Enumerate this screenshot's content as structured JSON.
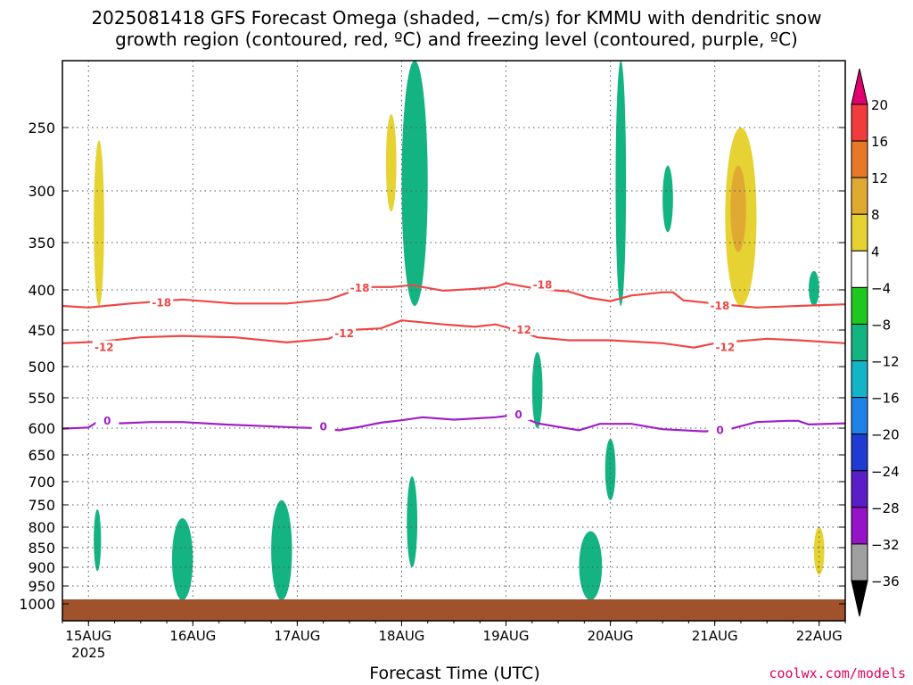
{
  "title": {
    "line1": "2025081418 GFS Forecast Omega (shaded, −cm/s) for KMMU with dendritic snow",
    "line2": "growth region (contoured, red, ºC) and freezing level (contoured, purple, ºC)"
  },
  "xlabel": "Forecast Time (UTC)",
  "credit": "coolwx.com/models",
  "chart_data": {
    "type": "heatmap",
    "x_axis": {
      "label": "Forecast Time (UTC)",
      "ticks": [
        {
          "label": "15AUG",
          "sub": "2025",
          "day": 15
        },
        {
          "label": "16AUG",
          "sub": "",
          "day": 16
        },
        {
          "label": "17AUG",
          "sub": "",
          "day": 17
        },
        {
          "label": "18AUG",
          "sub": "",
          "day": 18
        },
        {
          "label": "19AUG",
          "sub": "",
          "day": 19
        },
        {
          "label": "20AUG",
          "sub": "",
          "day": 20
        },
        {
          "label": "21AUG",
          "sub": "",
          "day": 21
        },
        {
          "label": "22AUG",
          "sub": "",
          "day": 22
        }
      ],
      "range_days": [
        14.75,
        22.25
      ]
    },
    "y_axis": {
      "label": "",
      "ticks": [
        250,
        300,
        350,
        400,
        450,
        500,
        550,
        600,
        650,
        700,
        750,
        800,
        850,
        900,
        950,
        1000
      ],
      "range": [
        200,
        1000
      ],
      "inverted": true
    },
    "colorbar": {
      "levels": [
        20,
        16,
        12,
        8,
        4,
        -4,
        -8,
        -12,
        -16,
        -20,
        -24,
        -28,
        -32,
        -36
      ],
      "colors": [
        "#f03c3c",
        "#e87828",
        "#e0aa32",
        "#e6d232",
        "#ffffff",
        "#1ec81e",
        "#14b482",
        "#14b4c8",
        "#1e82e6",
        "#1e3cd2",
        "#5a1ec8",
        "#9614c8",
        "#a0a0a0",
        "#000000"
      ],
      "top_color": "#e0006e",
      "bottom_color": "#000000"
    },
    "contours": [
      {
        "label": "-18",
        "color": "#f04646",
        "points": [
          [
            14.75,
            420
          ],
          [
            15.0,
            422
          ],
          [
            15.4,
            417
          ],
          [
            15.9,
            412
          ],
          [
            16.4,
            417
          ],
          [
            16.9,
            417
          ],
          [
            17.3,
            412
          ],
          [
            17.5,
            403
          ],
          [
            17.7,
            397
          ],
          [
            17.9,
            397
          ],
          [
            18.1,
            395
          ],
          [
            18.4,
            401
          ],
          [
            18.7,
            399
          ],
          [
            18.9,
            397
          ],
          [
            19.0,
            393
          ],
          [
            19.3,
            399
          ],
          [
            19.6,
            402
          ],
          [
            19.8,
            410
          ],
          [
            20.0,
            414
          ],
          [
            20.2,
            407
          ],
          [
            20.5,
            403
          ],
          [
            20.6,
            403
          ],
          [
            20.7,
            413
          ],
          [
            21.0,
            417
          ],
          [
            21.4,
            422
          ],
          [
            21.8,
            420
          ],
          [
            22.25,
            418
          ]
        ],
        "label_at": [
          [
            15.7,
            416
          ],
          [
            17.6,
            398
          ],
          [
            19.35,
            395
          ],
          [
            21.05,
            420
          ]
        ]
      },
      {
        "label": "-12",
        "color": "#f04646",
        "points": [
          [
            14.75,
            468
          ],
          [
            15.1,
            466
          ],
          [
            15.5,
            460
          ],
          [
            15.9,
            458
          ],
          [
            16.4,
            460
          ],
          [
            16.9,
            467
          ],
          [
            17.3,
            462
          ],
          [
            17.5,
            450
          ],
          [
            17.8,
            448
          ],
          [
            18.0,
            438
          ],
          [
            18.4,
            443
          ],
          [
            18.7,
            446
          ],
          [
            18.9,
            443
          ],
          [
            19.1,
            450
          ],
          [
            19.3,
            460
          ],
          [
            19.6,
            464
          ],
          [
            20.0,
            464
          ],
          [
            20.5,
            468
          ],
          [
            20.8,
            474
          ],
          [
            21.0,
            468
          ],
          [
            21.5,
            462
          ],
          [
            21.8,
            464
          ],
          [
            22.25,
            468
          ]
        ],
        "label_at": [
          [
            15.15,
            474
          ],
          [
            17.45,
            455
          ],
          [
            19.15,
            450
          ],
          [
            21.1,
            474
          ]
        ]
      },
      {
        "label": "0",
        "color": "#a01ec8",
        "points": [
          [
            14.75,
            601
          ],
          [
            15.0,
            599
          ],
          [
            15.1,
            588
          ],
          [
            15.3,
            592
          ],
          [
            15.6,
            590
          ],
          [
            15.9,
            590
          ],
          [
            16.3,
            594
          ],
          [
            16.6,
            596
          ],
          [
            17.0,
            599
          ],
          [
            17.2,
            600
          ],
          [
            17.4,
            604
          ],
          [
            17.6,
            598
          ],
          [
            17.8,
            591
          ],
          [
            18.0,
            587
          ],
          [
            18.2,
            582
          ],
          [
            18.5,
            586
          ],
          [
            18.9,
            582
          ],
          [
            19.1,
            578
          ],
          [
            19.3,
            592
          ],
          [
            19.5,
            598
          ],
          [
            19.7,
            604
          ],
          [
            19.9,
            593
          ],
          [
            20.2,
            593
          ],
          [
            20.5,
            602
          ],
          [
            20.9,
            606
          ],
          [
            21.1,
            604
          ],
          [
            21.4,
            590
          ],
          [
            21.7,
            588
          ],
          [
            21.8,
            588
          ],
          [
            21.9,
            594
          ],
          [
            22.25,
            592
          ]
        ],
        "label_at": [
          [
            15.18,
            588
          ],
          [
            17.25,
            598
          ],
          [
            19.12,
            578
          ],
          [
            21.05,
            604
          ]
        ]
      }
    ],
    "shaded_regions": [
      {
        "omega": 8,
        "day": [
          15.05,
          15.15
        ],
        "p": [
          260,
          420
        ]
      },
      {
        "omega": 4,
        "day": [
          14.8,
          14.95
        ],
        "p": [
          300,
          480
        ]
      },
      {
        "omega": 4,
        "day": [
          15.2,
          15.45
        ],
        "p": [
          230,
          500
        ]
      },
      {
        "omega": 4,
        "day": [
          15.5,
          15.7
        ],
        "p": [
          250,
          460
        ]
      },
      {
        "omega": -8,
        "day": [
          15.05,
          15.12
        ],
        "p": [
          760,
          910
        ]
      },
      {
        "omega": -12,
        "day": [
          15.85,
          15.95
        ],
        "p": [
          800,
          950
        ]
      },
      {
        "omega": -8,
        "day": [
          15.8,
          16.0
        ],
        "p": [
          780,
          990
        ]
      },
      {
        "omega": 4,
        "day": [
          16.6,
          16.9
        ],
        "p": [
          220,
          400
        ]
      },
      {
        "omega": -12,
        "day": [
          16.8,
          16.9
        ],
        "p": [
          760,
          950
        ]
      },
      {
        "omega": -8,
        "day": [
          16.75,
          16.95
        ],
        "p": [
          740,
          990
        ]
      },
      {
        "omega": 4,
        "day": [
          17.3,
          17.6
        ],
        "p": [
          220,
          600
        ]
      },
      {
        "omega": 8,
        "day": [
          17.85,
          17.95
        ],
        "p": [
          240,
          320
        ]
      },
      {
        "omega": -16,
        "day": [
          18.1,
          18.2
        ],
        "p": [
          240,
          380
        ]
      },
      {
        "omega": -8,
        "day": [
          18.0,
          18.25
        ],
        "p": [
          200,
          420
        ]
      },
      {
        "omega": 4,
        "day": [
          18.25,
          18.6
        ],
        "p": [
          200,
          500
        ]
      },
      {
        "omega": -8,
        "day": [
          18.05,
          18.15
        ],
        "p": [
          690,
          900
        ]
      },
      {
        "omega": 4,
        "day": [
          18.8,
          19.1
        ],
        "p": [
          200,
          420
        ]
      },
      {
        "omega": -8,
        "day": [
          19.25,
          19.35
        ],
        "p": [
          480,
          600
        ]
      },
      {
        "omega": 4,
        "day": [
          19.75,
          19.95
        ],
        "p": [
          480,
          640
        ]
      },
      {
        "omega": -12,
        "day": [
          19.75,
          19.85
        ],
        "p": [
          850,
          950
        ]
      },
      {
        "omega": -8,
        "day": [
          19.7,
          19.92
        ],
        "p": [
          810,
          990
        ]
      },
      {
        "omega": -8,
        "day": [
          19.95,
          20.05
        ],
        "p": [
          620,
          740
        ]
      },
      {
        "omega": -8,
        "day": [
          20.05,
          20.15
        ],
        "p": [
          200,
          420
        ]
      },
      {
        "omega": 4,
        "day": [
          20.2,
          20.4
        ],
        "p": [
          200,
          330
        ]
      },
      {
        "omega": -8,
        "day": [
          20.5,
          20.6
        ],
        "p": [
          280,
          340
        ]
      },
      {
        "omega": 4,
        "day": [
          20.7,
          22.0
        ],
        "p": [
          200,
          420
        ]
      },
      {
        "omega": 8,
        "day": [
          21.1,
          21.4
        ],
        "p": [
          250,
          420
        ]
      },
      {
        "omega": 12,
        "day": [
          21.15,
          21.3
        ],
        "p": [
          280,
          360
        ]
      },
      {
        "omega": -8,
        "day": [
          21.9,
          22.0
        ],
        "p": [
          380,
          420
        ]
      },
      {
        "omega": 4,
        "day": [
          21.9,
          22.1
        ],
        "p": [
          650,
          900
        ]
      },
      {
        "omega": 8,
        "day": [
          21.95,
          22.05
        ],
        "p": [
          800,
          920
        ]
      }
    ]
  }
}
